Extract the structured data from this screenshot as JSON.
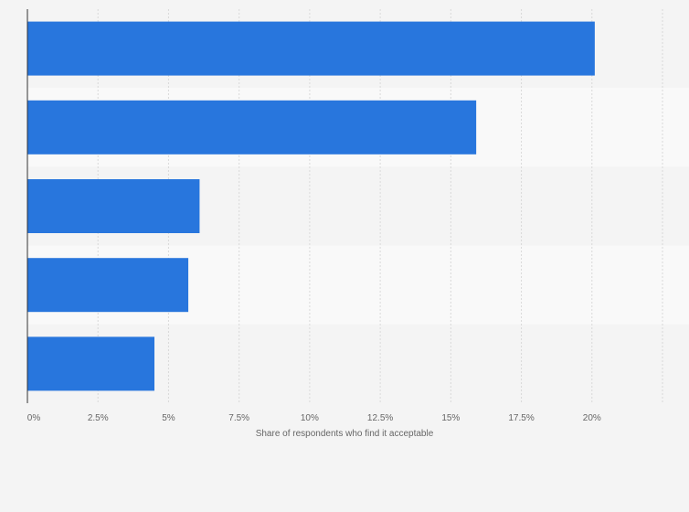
{
  "chart_data": {
    "type": "bar",
    "orientation": "horizontal",
    "categories": [
      "",
      "",
      "",
      "",
      ""
    ],
    "values": [
      20.1,
      15.9,
      6.1,
      5.7,
      4.5
    ],
    "title": "",
    "xlabel": "Share of respondents who find it acceptable",
    "ylabel": "",
    "xlim": [
      0,
      22.5
    ],
    "x_ticks": [
      0,
      2.5,
      5,
      7.5,
      10,
      12.5,
      15,
      17.5,
      20
    ],
    "x_tick_labels": [
      "0%",
      "2.5%",
      "5%",
      "7.5%",
      "10%",
      "12.5%",
      "15%",
      "17.5%",
      "20%"
    ],
    "grid": "vertical dashed",
    "legend": "none",
    "colors": {
      "bar": "#2876dd",
      "band_dark": "#f4f4f4",
      "band_light": "#f9f9f9",
      "grid": "#d9d9d9",
      "axis": "#333333",
      "text": "#666666"
    }
  }
}
